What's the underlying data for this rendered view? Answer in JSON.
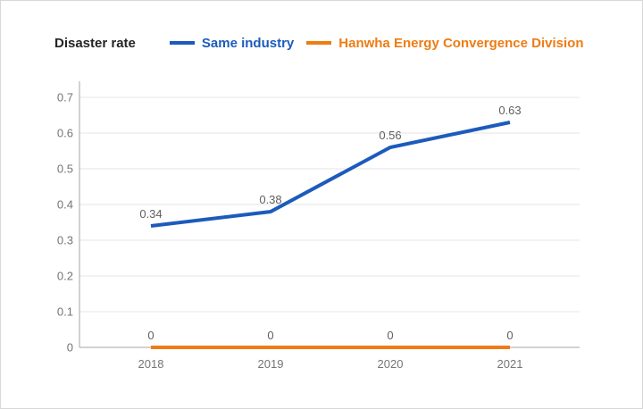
{
  "header": {
    "title": "Disaster rate"
  },
  "chart_data": {
    "type": "line",
    "title": "Disaster rate",
    "categories": [
      "2018",
      "2019",
      "2020",
      "2021"
    ],
    "series": [
      {
        "name": "Same industry",
        "color": "#1c5bbc",
        "values": [
          0.34,
          0.38,
          0.56,
          0.63
        ],
        "point_labels": [
          "0.34",
          "0.38",
          "0.56",
          "0.63"
        ]
      },
      {
        "name": "Hanwha Energy Convergence Division",
        "color": "#ee7c14",
        "values": [
          0,
          0,
          0,
          0
        ],
        "point_labels": [
          "0",
          "0",
          "0",
          "0"
        ]
      }
    ],
    "xlabel": "",
    "ylabel": "",
    "ylim": [
      0,
      0.7
    ],
    "yticks": [
      "0",
      "0.1",
      "0.2",
      "0.3",
      "0.4",
      "0.5",
      "0.6",
      "0.7"
    ],
    "grid": true,
    "legend_position": "top"
  },
  "colors": {
    "grid": "#e6e6e6",
    "axis_line": "#a6a6a6",
    "tick_text": "#757575",
    "data_label_text": "#5f5f5f",
    "title_text": "#242424",
    "card_border": "#d8d8d8",
    "background": "#ffffff"
  }
}
